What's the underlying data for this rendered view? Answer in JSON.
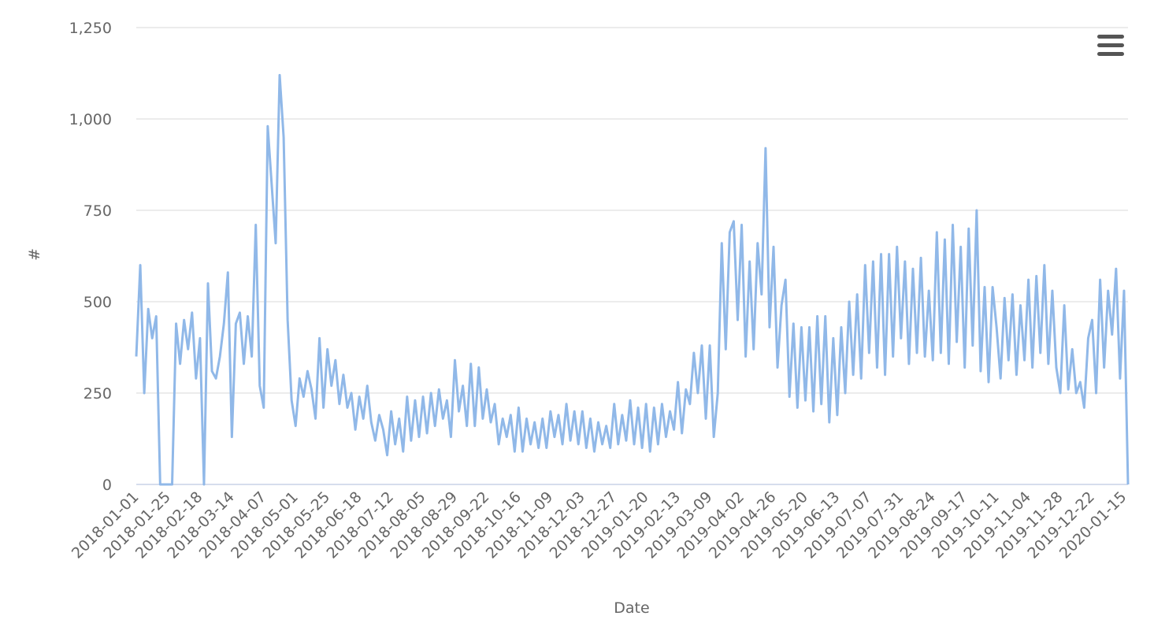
{
  "chart_data": {
    "type": "line",
    "x_label": "Date",
    "y_label": "#",
    "categories": [
      "2018-01-01",
      null,
      null,
      null,
      null,
      null,
      null,
      null,
      "2018-01-25",
      null,
      null,
      null,
      null,
      null,
      null,
      null,
      "2018-02-18",
      null,
      null,
      null,
      null,
      null,
      null,
      null,
      "2018-03-14",
      null,
      null,
      null,
      null,
      null,
      null,
      null,
      "2018-04-07",
      null,
      null,
      null,
      null,
      null,
      null,
      null,
      "2018-05-01",
      null,
      null,
      null,
      null,
      null,
      null,
      null,
      "2018-05-25",
      null,
      null,
      null,
      null,
      null,
      null,
      null,
      "2018-06-18",
      null,
      null,
      null,
      null,
      null,
      null,
      null,
      "2018-07-12",
      null,
      null,
      null,
      null,
      null,
      null,
      null,
      "2018-08-05",
      null,
      null,
      null,
      null,
      null,
      null,
      null,
      "2018-08-29",
      null,
      null,
      null,
      null,
      null,
      null,
      null,
      "2018-09-22",
      null,
      null,
      null,
      null,
      null,
      null,
      null,
      "2018-10-16",
      null,
      null,
      null,
      null,
      null,
      null,
      null,
      "2018-11-09",
      null,
      null,
      null,
      null,
      null,
      null,
      null,
      "2018-12-03",
      null,
      null,
      null,
      null,
      null,
      null,
      null,
      "2018-12-27",
      null,
      null,
      null,
      null,
      null,
      null,
      null,
      "2019-01-20",
      null,
      null,
      null,
      null,
      null,
      null,
      null,
      "2019-02-13",
      null,
      null,
      null,
      null,
      null,
      null,
      null,
      "2019-03-09",
      null,
      null,
      null,
      null,
      null,
      null,
      null,
      "2019-04-02",
      null,
      null,
      null,
      null,
      null,
      null,
      null,
      "2019-04-26",
      null,
      null,
      null,
      null,
      null,
      null,
      null,
      "2019-05-20",
      null,
      null,
      null,
      null,
      null,
      null,
      null,
      "2019-06-13",
      null,
      null,
      null,
      null,
      null,
      null,
      null,
      "2019-07-07",
      null,
      null,
      null,
      null,
      null,
      null,
      null,
      "2019-07-31",
      null,
      null,
      null,
      null,
      null,
      null,
      null,
      "2019-08-24",
      null,
      null,
      null,
      null,
      null,
      null,
      null,
      "2019-09-17",
      null,
      null,
      null,
      null,
      null,
      null,
      null,
      "2019-10-11",
      null,
      null,
      null,
      null,
      null,
      null,
      null,
      "2019-11-04",
      null,
      null,
      null,
      null,
      null,
      null,
      null,
      "2019-11-28",
      null,
      null,
      null,
      null,
      null,
      null,
      null,
      "2019-12-22",
      null,
      null,
      null,
      null,
      null,
      null,
      null,
      "2020-01-15",
      null
    ],
    "values": [
      350,
      600,
      250,
      480,
      400,
      460,
      0,
      0,
      0,
      0,
      440,
      330,
      450,
      370,
      470,
      290,
      400,
      0,
      550,
      310,
      290,
      350,
      440,
      580,
      130,
      440,
      470,
      330,
      460,
      350,
      710,
      270,
      210,
      980,
      820,
      660,
      1120,
      950,
      450,
      230,
      160,
      290,
      240,
      310,
      260,
      180,
      400,
      210,
      370,
      270,
      340,
      220,
      300,
      210,
      250,
      150,
      240,
      180,
      270,
      170,
      120,
      190,
      150,
      80,
      200,
      110,
      180,
      90,
      240,
      120,
      230,
      130,
      240,
      140,
      250,
      160,
      260,
      180,
      230,
      130,
      340,
      200,
      270,
      160,
      330,
      160,
      320,
      180,
      260,
      170,
      220,
      110,
      180,
      130,
      190,
      90,
      210,
      90,
      180,
      110,
      170,
      100,
      180,
      100,
      200,
      130,
      190,
      110,
      220,
      120,
      200,
      110,
      200,
      100,
      180,
      90,
      170,
      110,
      160,
      100,
      220,
      110,
      190,
      120,
      230,
      110,
      210,
      100,
      220,
      90,
      210,
      110,
      220,
      130,
      200,
      150,
      280,
      140,
      260,
      220,
      360,
      250,
      380,
      180,
      380,
      130,
      250,
      660,
      370,
      690,
      720,
      450,
      710,
      350,
      610,
      370,
      660,
      520,
      920,
      430,
      650,
      320,
      490,
      560,
      240,
      440,
      210,
      430,
      230,
      430,
      200,
      460,
      220,
      460,
      170,
      400,
      190,
      430,
      250,
      500,
      300,
      520,
      290,
      600,
      360,
      610,
      320,
      630,
      300,
      630,
      350,
      650,
      400,
      610,
      330,
      590,
      360,
      620,
      350,
      530,
      340,
      690,
      360,
      670,
      330,
      710,
      390,
      650,
      320,
      700,
      380,
      750,
      310,
      540,
      280,
      540,
      430,
      290,
      510,
      340,
      520,
      300,
      490,
      340,
      560,
      320,
      570,
      360,
      600,
      330,
      530,
      320,
      250,
      490,
      260,
      370,
      250,
      280,
      210,
      400,
      450,
      250,
      560,
      320,
      530,
      410,
      590,
      290,
      530,
      0
    ],
    "color": "#90b8e8",
    "ylim": [
      0,
      1250
    ],
    "yticks": [
      0,
      250,
      500,
      750,
      {
        "value": 1000,
        "label": "1,000"
      },
      {
        "value": 1250,
        "label": "1,250"
      }
    ],
    "grid": true
  }
}
